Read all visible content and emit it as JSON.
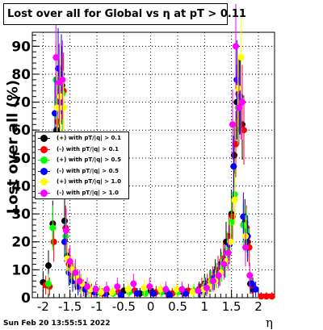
{
  "chart_data": {
    "type": "scatter",
    "title": "Lost over all for Global vs   η at pT > 0.11",
    "ylabel": "Lost over all (%)",
    "xlabel": "η",
    "xlim": [
      -2.2,
      2.3
    ],
    "ylim": [
      0,
      95
    ],
    "x_ticks": [
      -2,
      -1.5,
      -1,
      -0.5,
      0,
      0.5,
      1,
      1.5,
      2
    ],
    "x_tick_labels": [
      "-2",
      "-1.5",
      "-1",
      "-0.5",
      "0",
      "0.5",
      "1",
      "1.5",
      "2"
    ],
    "y_ticks": [
      0,
      10,
      20,
      30,
      40,
      50,
      60,
      70,
      80,
      90
    ],
    "y_tick_labels": [
      "0",
      "10",
      "20",
      "30",
      "40",
      "50",
      "60",
      "70",
      "80",
      "90"
    ],
    "grid": true,
    "legend_position": "middle-left",
    "series": [
      {
        "name": "(+) with pT/|q| > 0.1",
        "color": "#000000",
        "x": [
          -2.0,
          -1.9,
          -1.82,
          -1.75,
          -1.7,
          -1.65,
          -1.6,
          -1.55,
          -1.5,
          -1.4,
          -1.3,
          -1.2,
          -1.0,
          -0.8,
          -0.5,
          -0.2,
          0.0,
          0.3,
          0.6,
          0.9,
          1.0,
          1.1,
          1.2,
          1.3,
          1.4,
          1.5,
          1.55,
          1.6,
          1.65,
          1.7,
          1.75,
          1.8,
          1.85,
          1.9
        ],
        "y": [
          5.5,
          11.5,
          26.5,
          60,
          72,
          76,
          27.5,
          15,
          10,
          7,
          4.5,
          3,
          2,
          2,
          2.5,
          1.5,
          2.5,
          2,
          2,
          3,
          5,
          6,
          9,
          12,
          20,
          30,
          51,
          70,
          72,
          62,
          27,
          20,
          5,
          3
        ]
      },
      {
        "name": "(-) with pT/|q| > 0.1",
        "color": "#ff0000",
        "x": [
          -1.95,
          -1.88,
          -1.8,
          -1.73,
          -1.68,
          -1.62,
          -1.58,
          -1.52,
          -1.45,
          -1.35,
          -1.25,
          -1.1,
          -0.9,
          -0.6,
          -0.3,
          0.1,
          0.4,
          0.7,
          0.95,
          1.05,
          1.15,
          1.25,
          1.35,
          1.45,
          1.52,
          1.58,
          1.63,
          1.68,
          1.73,
          1.78,
          1.83,
          1.9,
          2.05,
          2.15,
          2.25
        ],
        "y": [
          4.5,
          4,
          20,
          63,
          70,
          74,
          25,
          12,
          8,
          5,
          3.5,
          2.5,
          1.5,
          2,
          2.5,
          2,
          1.5,
          2.5,
          4,
          5,
          7,
          10,
          14,
          22,
          29,
          55,
          73,
          70,
          60,
          25,
          18,
          4,
          0.5,
          0.5,
          0.5
        ]
      },
      {
        "name": "(+) with pT/|q| > 0.5",
        "color": "#00ff00",
        "x": [
          -1.9,
          -1.82,
          -1.76,
          -1.7,
          -1.64,
          -1.58,
          -1.5,
          -1.42,
          -1.3,
          -1.15,
          -0.95,
          -0.7,
          -0.4,
          -0.1,
          0.2,
          0.5,
          0.8,
          1.0,
          1.12,
          1.22,
          1.32,
          1.42,
          1.5,
          1.56,
          1.62,
          1.67,
          1.72,
          1.78
        ],
        "y": [
          5,
          25,
          78,
          76,
          73,
          22,
          10,
          8,
          5,
          3,
          2,
          1.5,
          2,
          1.5,
          2,
          2,
          2.5,
          4,
          6,
          8,
          11,
          17,
          27,
          37,
          68,
          72,
          26,
          24
        ]
      },
      {
        "name": "(-) with pT/|q| > 0.5",
        "color": "#0000ff",
        "x": [
          -1.78,
          -1.72,
          -1.66,
          -1.6,
          -1.52,
          -1.45,
          -1.35,
          -1.22,
          -1.05,
          -0.85,
          -0.55,
          -0.25,
          0.05,
          0.35,
          0.65,
          0.92,
          1.02,
          1.18,
          1.28,
          1.38,
          1.46,
          1.54,
          1.6,
          1.66,
          1.72,
          1.8,
          1.88,
          1.95
        ],
        "y": [
          66,
          82,
          80,
          20,
          9,
          6,
          4,
          3,
          2,
          1.5,
          1,
          1.5,
          1.5,
          1,
          1.5,
          2.5,
          4,
          7,
          9,
          13,
          19,
          47,
          78,
          72,
          29,
          22,
          5,
          3
        ]
      },
      {
        "name": "(+) with pT/|q| > 1.0",
        "color": "#ffff00",
        "x": [
          -1.74,
          -1.68,
          -1.62,
          -1.55,
          -1.47,
          -1.38,
          -1.28,
          -1.12,
          -0.92,
          -0.72,
          -0.42,
          -0.12,
          0.18,
          0.48,
          0.78,
          0.98,
          1.08,
          1.2,
          1.3,
          1.4,
          1.48,
          1.56,
          1.62,
          1.68,
          1.76
        ],
        "y": [
          68,
          72,
          68,
          14,
          10,
          7,
          5,
          3,
          2,
          2,
          3,
          3.5,
          3,
          3,
          2,
          3,
          4,
          6,
          9,
          13,
          20,
          35,
          75,
          86,
          22
        ]
      },
      {
        "name": "(-) with pT/|q| > 1.0",
        "color": "#ff00ff",
        "x": [
          -1.76,
          -1.7,
          -1.64,
          -1.57,
          -1.5,
          -1.4,
          -1.32,
          -1.18,
          -1.02,
          -0.82,
          -0.62,
          -0.32,
          -0.02,
          0.28,
          0.58,
          0.88,
          1.04,
          1.16,
          1.26,
          1.36,
          1.44,
          1.52,
          1.58,
          1.64,
          1.7,
          1.76,
          1.84
        ],
        "y": [
          86,
          77,
          78,
          24,
          13,
          9,
          6,
          4,
          3,
          3,
          4,
          5,
          4,
          3,
          3,
          2.5,
          3.5,
          6,
          8,
          12,
          16,
          62,
          90,
          68,
          70,
          18,
          8
        ]
      }
    ],
    "timestamp": "Sun Feb 20 13:55:51 2022"
  }
}
